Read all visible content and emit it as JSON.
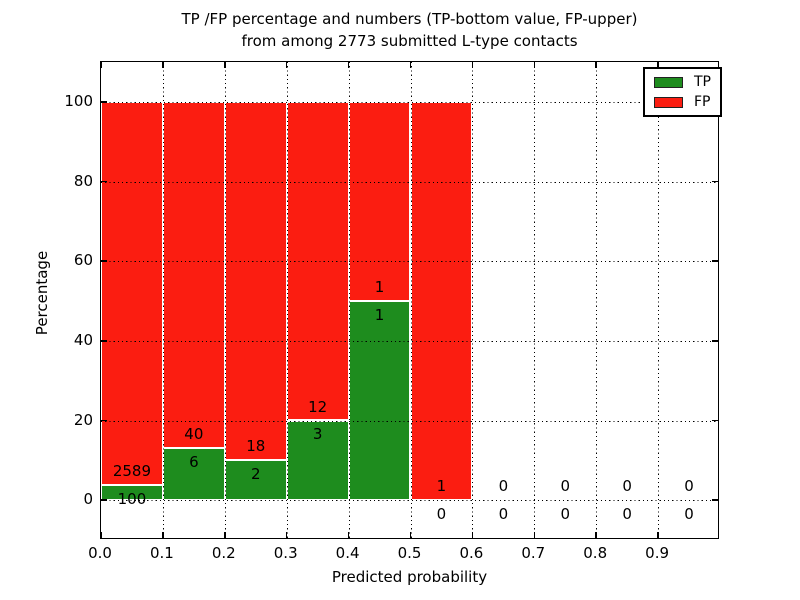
{
  "title": {
    "line1": "TP /FP percentage and numbers (TP-bottom value, FP-upper)",
    "line2": "from among 2773 submitted L-type contacts"
  },
  "axes": {
    "xlabel": "Predicted probability",
    "ylabel": "Percentage"
  },
  "legend": {
    "items": [
      {
        "label": "TP",
        "color": "#1e8c1e"
      },
      {
        "label": "FP",
        "color": "#fb1d11"
      }
    ]
  },
  "colors": {
    "tp": "#1e8c1e",
    "fp": "#fb1d11",
    "grid": "#000000",
    "background": "#ffffff",
    "text": "#000000"
  },
  "chart_data": {
    "type": "bar",
    "stacked": true,
    "title": "TP /FP percentage and numbers (TP-bottom value, FP-upper) from among 2773 submitted L-type contacts",
    "xlabel": "Predicted probability",
    "ylabel": "Percentage",
    "xlim": [
      0.0,
      1.0
    ],
    "ylim": [
      -10,
      110
    ],
    "grid": true,
    "legend_position": "upper right",
    "total_submitted": 2773,
    "x_ticks": [
      "0.0",
      "0.1",
      "0.2",
      "0.3",
      "0.4",
      "0.5",
      "0.6",
      "0.7",
      "0.8",
      "0.9"
    ],
    "y_ticks": [
      "0",
      "20",
      "40",
      "60",
      "80",
      "100"
    ],
    "x_gridlines": [
      0.1,
      0.2,
      0.3,
      0.4,
      0.5,
      0.6,
      0.7,
      0.8,
      0.9
    ],
    "y_gridlines": [
      0,
      20,
      40,
      60,
      80,
      100
    ],
    "bins": [
      {
        "range": [
          0.0,
          0.1
        ],
        "tp": 100,
        "fp": 2589
      },
      {
        "range": [
          0.1,
          0.2
        ],
        "tp": 6,
        "fp": 40
      },
      {
        "range": [
          0.2,
          0.3
        ],
        "tp": 2,
        "fp": 18
      },
      {
        "range": [
          0.3,
          0.4
        ],
        "tp": 3,
        "fp": 12
      },
      {
        "range": [
          0.4,
          0.5
        ],
        "tp": 1,
        "fp": 1
      },
      {
        "range": [
          0.5,
          0.6
        ],
        "tp": 0,
        "fp": 1
      },
      {
        "range": [
          0.6,
          0.7
        ],
        "tp": 0,
        "fp": 0
      },
      {
        "range": [
          0.7,
          0.8
        ],
        "tp": 0,
        "fp": 0
      },
      {
        "range": [
          0.8,
          0.9
        ],
        "tp": 0,
        "fp": 0
      },
      {
        "range": [
          0.9,
          1.0
        ],
        "tp": 0,
        "fp": 0
      }
    ],
    "series": [
      {
        "name": "TP",
        "color": "#1e8c1e",
        "percent": [
          3.72,
          13.04,
          10.0,
          20.0,
          50.0,
          0.0,
          0.0,
          0.0,
          0.0,
          0.0
        ]
      },
      {
        "name": "FP",
        "color": "#fb1d11",
        "percent": [
          96.28,
          86.96,
          90.0,
          80.0,
          50.0,
          100.0,
          0.0,
          0.0,
          0.0,
          0.0
        ]
      }
    ]
  }
}
